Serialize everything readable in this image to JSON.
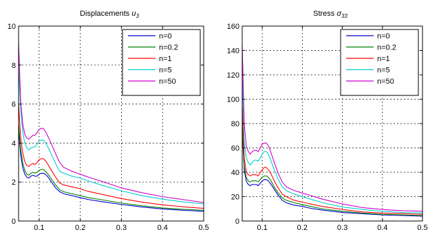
{
  "figure": {
    "background": "#ffffff"
  },
  "chart_data": [
    {
      "type": "line",
      "title": "Displacements",
      "title_symbol": "u",
      "title_sub": "3",
      "xlim": [
        0.05,
        0.5
      ],
      "ylim": [
        0,
        10
      ],
      "xticks": [
        0.1,
        0.2,
        0.3,
        0.4,
        0.5
      ],
      "yticks": [
        0,
        2,
        4,
        6,
        8,
        10
      ],
      "grid": true,
      "grid_style": "dotted",
      "legend_position": "top-right",
      "x": [
        0.05,
        0.055,
        0.06,
        0.065,
        0.07,
        0.075,
        0.08,
        0.085,
        0.09,
        0.095,
        0.1,
        0.105,
        0.11,
        0.115,
        0.12,
        0.13,
        0.14,
        0.15,
        0.16,
        0.18,
        0.2,
        0.22,
        0.25,
        0.3,
        0.35,
        0.4,
        0.45,
        0.5
      ],
      "series": [
        {
          "name": "n=0",
          "color": "#0000cc",
          "values": [
            4.7,
            3.4,
            2.75,
            2.4,
            2.25,
            2.2,
            2.3,
            2.35,
            2.3,
            2.3,
            2.4,
            2.45,
            2.45,
            2.4,
            2.3,
            2.0,
            1.7,
            1.5,
            1.4,
            1.3,
            1.2,
            1.1,
            1.0,
            0.85,
            0.72,
            0.62,
            0.55,
            0.5
          ]
        },
        {
          "name": "n=0.2",
          "color": "#008000",
          "values": [
            5.0,
            3.7,
            3.0,
            2.6,
            2.4,
            2.35,
            2.45,
            2.5,
            2.45,
            2.5,
            2.6,
            2.65,
            2.65,
            2.55,
            2.45,
            2.15,
            1.85,
            1.6,
            1.5,
            1.4,
            1.3,
            1.2,
            1.1,
            0.92,
            0.78,
            0.67,
            0.6,
            0.55
          ]
        },
        {
          "name": "n=1",
          "color": "#ff0000",
          "values": [
            6.0,
            4.3,
            3.5,
            3.05,
            2.85,
            2.8,
            2.9,
            2.95,
            2.9,
            3.0,
            3.15,
            3.2,
            3.2,
            3.1,
            2.95,
            2.6,
            2.25,
            1.95,
            1.85,
            1.75,
            1.65,
            1.52,
            1.38,
            1.15,
            0.97,
            0.83,
            0.73,
            0.65
          ]
        },
        {
          "name": "n=5",
          "color": "#00cccc",
          "values": [
            7.8,
            5.7,
            4.6,
            4.0,
            3.75,
            3.65,
            3.75,
            3.8,
            3.8,
            3.95,
            4.1,
            4.15,
            4.15,
            4.05,
            3.85,
            3.4,
            2.95,
            2.55,
            2.45,
            2.3,
            2.2,
            2.05,
            1.85,
            1.55,
            1.3,
            1.12,
            0.98,
            0.88
          ]
        },
        {
          "name": "n=50",
          "color": "#cc00cc",
          "values": [
            9.2,
            6.2,
            5.0,
            4.45,
            4.25,
            4.2,
            4.3,
            4.4,
            4.4,
            4.55,
            4.7,
            4.75,
            4.75,
            4.6,
            4.4,
            3.95,
            3.45,
            3.0,
            2.75,
            2.55,
            2.4,
            2.25,
            2.05,
            1.7,
            1.45,
            1.25,
            1.1,
            0.95
          ]
        }
      ]
    },
    {
      "type": "line",
      "title": "Stress",
      "title_symbol": "σ",
      "title_sub": "33",
      "xlim": [
        0.05,
        0.5
      ],
      "ylim": [
        0,
        160
      ],
      "xticks": [
        0.1,
        0.2,
        0.3,
        0.4,
        0.5
      ],
      "yticks": [
        0,
        20,
        40,
        60,
        80,
        100,
        120,
        140,
        160
      ],
      "grid": true,
      "grid_style": "dotted",
      "legend_position": "top-right",
      "x": [
        0.05,
        0.055,
        0.06,
        0.065,
        0.07,
        0.075,
        0.08,
        0.085,
        0.09,
        0.095,
        0.1,
        0.105,
        0.11,
        0.115,
        0.12,
        0.13,
        0.14,
        0.15,
        0.16,
        0.18,
        0.2,
        0.22,
        0.25,
        0.3,
        0.35,
        0.4,
        0.45,
        0.5
      ],
      "series": [
        {
          "name": "n=0",
          "color": "#0000cc",
          "values": [
            75,
            42,
            33,
            30,
            29,
            30,
            30,
            30,
            29,
            31,
            33,
            34,
            34,
            33,
            31,
            26,
            21,
            17,
            15,
            13,
            12,
            10.5,
            9,
            7,
            6,
            5,
            4.5,
            4
          ]
        },
        {
          "name": "n=0.2",
          "color": "#008000",
          "values": [
            80,
            45,
            36,
            33,
            32,
            33,
            33,
            33,
            32,
            34,
            36,
            37,
            37,
            36,
            34,
            28,
            23,
            19,
            17,
            15,
            13.5,
            12,
            10,
            8,
            6.5,
            5.5,
            5,
            4.5
          ]
        },
        {
          "name": "n=1",
          "color": "#ff0000",
          "values": [
            95,
            52,
            41,
            38,
            37,
            38,
            38,
            38,
            37,
            40,
            42,
            44,
            44,
            42,
            40,
            33,
            27,
            22,
            20,
            17,
            15.5,
            14,
            12,
            9.5,
            7.5,
            6.5,
            6,
            5.5
          ]
        },
        {
          "name": "n=5",
          "color": "#00cccc",
          "values": [
            120,
            65,
            52,
            48,
            46,
            48,
            50,
            50,
            49,
            52,
            55,
            57,
            57,
            55,
            51,
            42,
            34,
            28,
            25,
            22,
            20,
            18,
            15,
            11.5,
            9.5,
            8,
            7,
            6.5
          ]
        },
        {
          "name": "n=50",
          "color": "#cc00cc",
          "values": [
            145,
            80,
            62,
            57,
            55,
            57,
            58,
            58,
            57,
            60,
            63,
            64,
            64,
            62,
            58,
            48,
            39,
            32,
            28,
            25,
            23,
            21,
            18,
            14,
            11,
            9.5,
            8.5,
            8
          ]
        }
      ]
    }
  ]
}
